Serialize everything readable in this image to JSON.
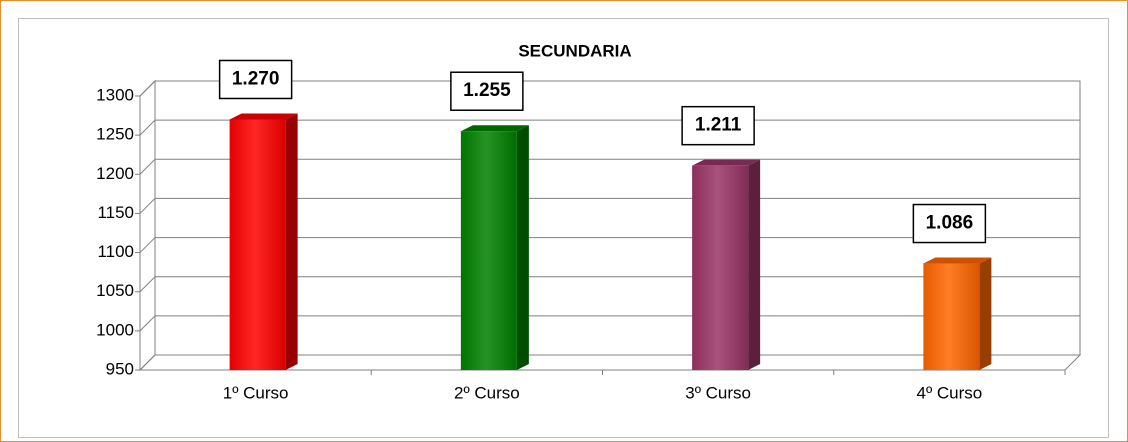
{
  "chart_data": {
    "type": "bar3d",
    "title": "SECUNDARIA",
    "categories": [
      "1º Curso",
      "2º Curso",
      "3º Curso",
      "4º Curso"
    ],
    "values": [
      1270,
      1255,
      1211,
      1086
    ],
    "value_labels": [
      "1.270",
      "1.255",
      "1.211",
      "1.086"
    ],
    "colors": [
      "#ff0000",
      "#008000",
      "#993366",
      "#ff6600"
    ],
    "ylim": [
      950,
      1300
    ],
    "yticks": [
      950,
      1000,
      1050,
      1100,
      1150,
      1200,
      1250,
      1300
    ],
    "grid": true
  }
}
